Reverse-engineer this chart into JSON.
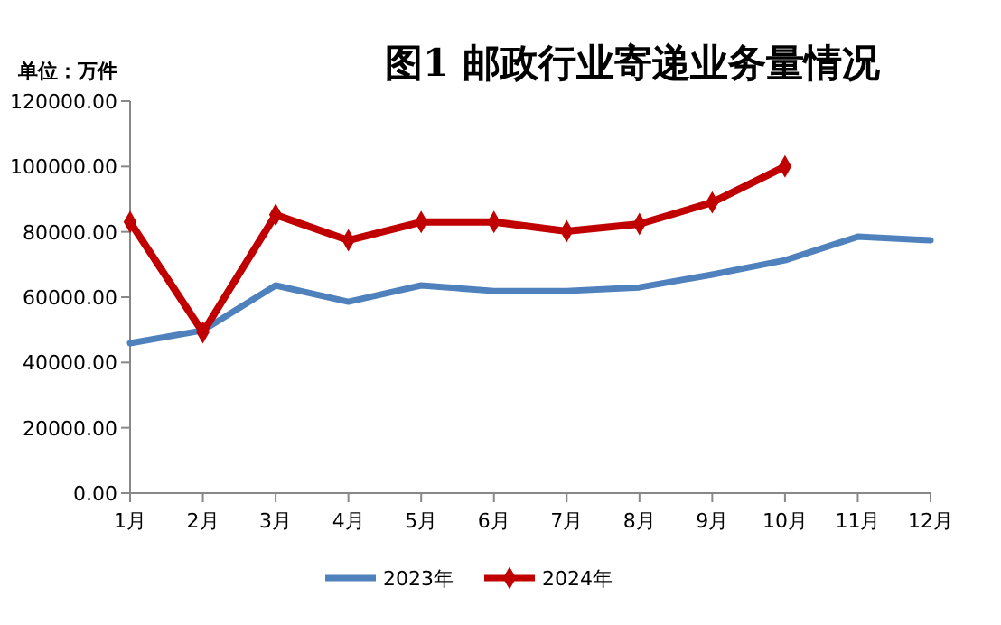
{
  "chart_data": {
    "type": "line",
    "title": "图1  邮政行业寄递业务量情况",
    "ylabel": "单位：万件",
    "categories": [
      "1月",
      "2月",
      "3月",
      "4月",
      "5月",
      "6月",
      "7月",
      "8月",
      "9月",
      "10月",
      "11月",
      "12月"
    ],
    "series": [
      {
        "name": "2023年",
        "color": "#4f81bd",
        "values": [
          45900,
          49800,
          63600,
          58600,
          63600,
          61900,
          61900,
          63000,
          66900,
          71300,
          78500,
          77400
        ],
        "marker": "none"
      },
      {
        "name": "2024年",
        "color": "#c00000",
        "values": [
          83000,
          49200,
          85200,
          77400,
          83000,
          83000,
          80200,
          82400,
          89000,
          100000,
          null,
          null
        ],
        "marker": "diamond"
      }
    ],
    "ylim": [
      0,
      120000
    ],
    "yticks": [
      {
        "value": 0,
        "label": "0.00"
      },
      {
        "value": 20000,
        "label": "20000.00"
      },
      {
        "value": 40000,
        "label": "40000.00"
      },
      {
        "value": 60000,
        "label": "60000.00"
      },
      {
        "value": 80000,
        "label": "80000.00"
      },
      {
        "value": 100000,
        "label": "100000.00"
      },
      {
        "value": 120000,
        "label": "120000.00"
      }
    ],
    "grid": false,
    "legend": "bottom",
    "line_style": "solid"
  }
}
